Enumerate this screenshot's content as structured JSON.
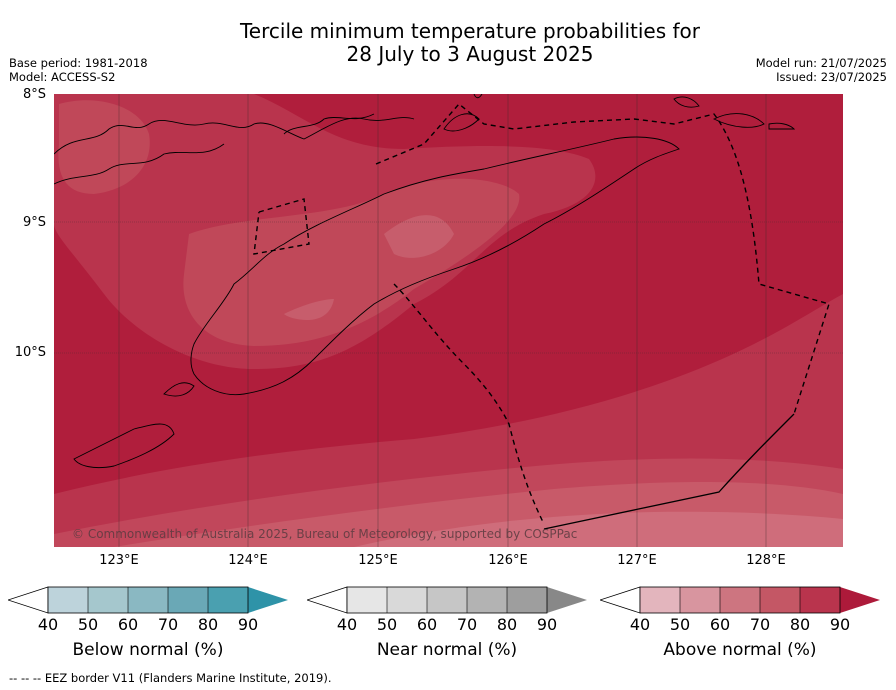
{
  "title": {
    "line1": "Tercile minimum temperature probabilities for",
    "line2": "28 July to 3 August 2025"
  },
  "meta": {
    "base_period": "Base period: 1981-2018",
    "model": "Model: ACCESS-S2",
    "model_run": "Model run: 21/07/2025",
    "issued": "Issued: 23/07/2025"
  },
  "map": {
    "lat_labels": [
      "8°S",
      "9°S",
      "10°S"
    ],
    "lon_labels": [
      "123°E",
      "124°E",
      "125°E",
      "126°E",
      "127°E",
      "128°E"
    ],
    "copyright": "© Commonwealth of Australia 2025, Bureau of Meteorology, supported by COSPPac",
    "colors": {
      "above_90": "#b01e3c",
      "above_80": "#b9344d",
      "above_70": "#c75767",
      "above_60": "#d1727f",
      "above_50": "#db9aa3"
    }
  },
  "legends": [
    {
      "label": "Below normal (%)",
      "ticks": [
        "40",
        "50",
        "60",
        "70",
        "80",
        "90"
      ],
      "colors": [
        "#bdd3db",
        "#a5c7cd",
        "#8ab8c2",
        "#6aa8b6",
        "#4aa0b0",
        "#2e93a8"
      ]
    },
    {
      "label": "Near normal (%)",
      "ticks": [
        "40",
        "50",
        "60",
        "70",
        "80",
        "90"
      ],
      "colors": [
        "#e6e6e6",
        "#d9d9d9",
        "#c6c6c6",
        "#b3b3b3",
        "#9e9e9e",
        "#888888"
      ]
    },
    {
      "label": "Above normal (%)",
      "ticks": [
        "40",
        "50",
        "60",
        "70",
        "80",
        "90"
      ],
      "colors": [
        "#e3b5bd",
        "#d8959f",
        "#cd7580",
        "#c45765",
        "#b9344d",
        "#ad1a3a"
      ]
    }
  ],
  "footer": "--  --  -- EEZ border V11 (Flanders Marine Institute, 2019)."
}
